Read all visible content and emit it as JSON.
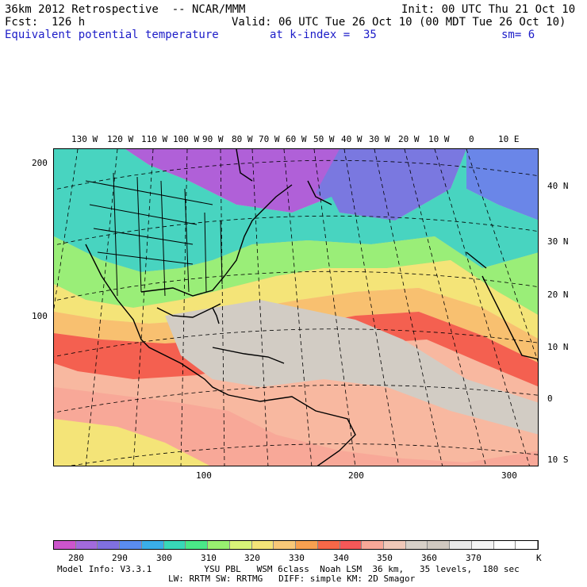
{
  "header": {
    "model_title": "36km 2012 Retrospective  -- NCAR/MMM",
    "init": "Init: 00 UTC Thu 21 Oct 10",
    "forecast": "Fcst:  126 h",
    "valid": "Valid: 06 UTC Tue 26 Oct 10 (00 MDT Tue 26 Oct 10)",
    "field": "Equivalent potential temperature",
    "level": "at k-index =  35",
    "smoothing": "sm= 6"
  },
  "longitude_labels": [
    "130 W",
    "120 W",
    "110 W",
    "100 W",
    "90 W",
    "80 W",
    "70 W",
    "60 W",
    "50 W",
    "40 W",
    "30 W",
    "20 W",
    "10 W",
    "0",
    "10 E"
  ],
  "latitude_labels": [
    "40 N",
    "30 N",
    "20 N",
    "10 N",
    "0",
    "10 S"
  ],
  "grid_y_labels": [
    "200",
    "100"
  ],
  "grid_x_labels": [
    "100",
    "200",
    "300"
  ],
  "colorbar": {
    "labels": [
      "280",
      "290",
      "300",
      "310",
      "320",
      "330",
      "340",
      "350",
      "360",
      "370",
      "K"
    ],
    "colors": [
      "#cc55cc",
      "#a26adc",
      "#8070e0",
      "#5a8cf0",
      "#3aaee8",
      "#38d8b8",
      "#4ae888",
      "#98f070",
      "#d8f478",
      "#f4e478",
      "#f8c878",
      "#f8a050",
      "#f66848",
      "#f45858",
      "#f8a898",
      "#f0c8b8",
      "#d8d0c8",
      "#d0c8c0",
      "#e8e8e8",
      "#f4f4f4",
      "#ffffff",
      "#ffffff"
    ]
  },
  "footer": {
    "line1": "Model Info: V3.3.1          YSU PBL   WSM 6class  Noah LSM  36 km,   35 levels,  180 sec",
    "line2": "LW: RRTM SW: RRTMG   DIFF: simple KM: 2D Smagor"
  }
}
